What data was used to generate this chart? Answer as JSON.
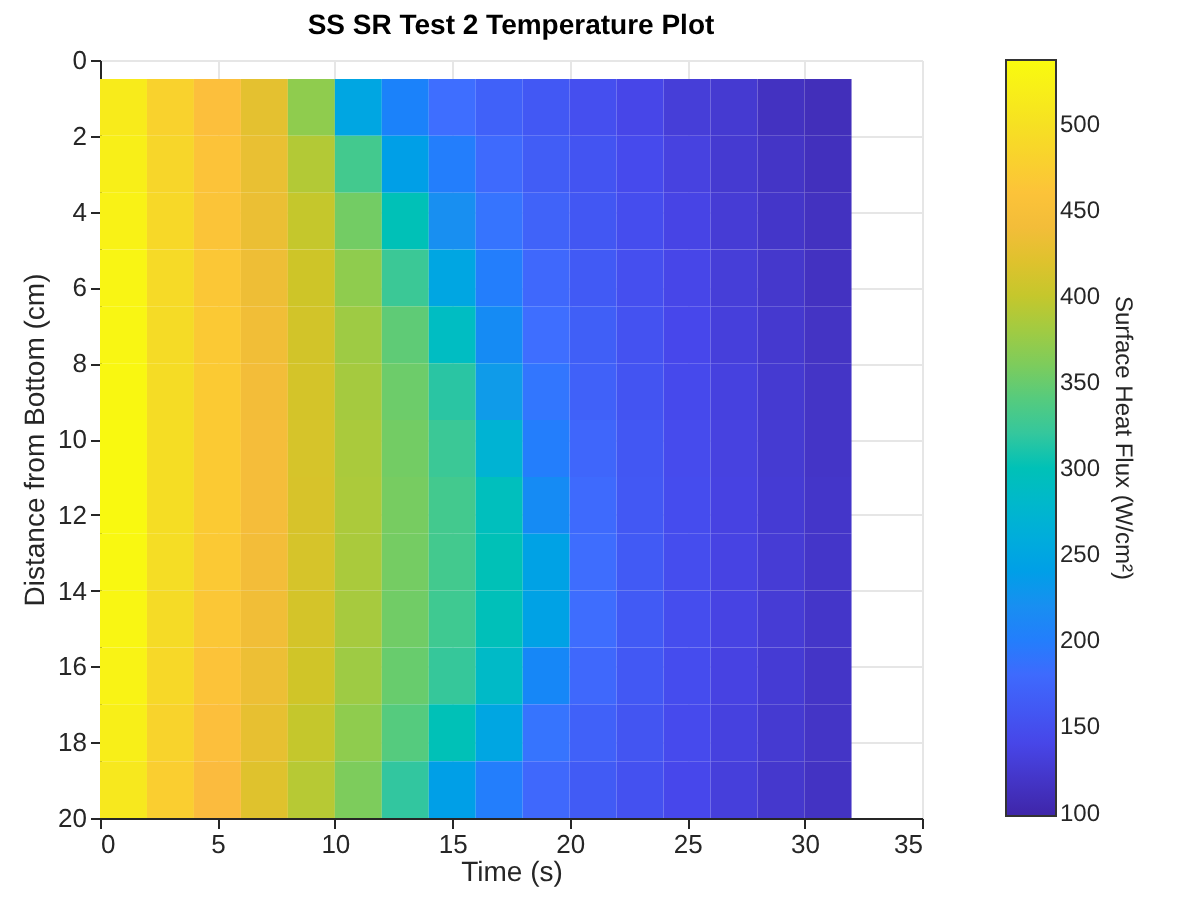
{
  "chart_data": {
    "type": "heatmap",
    "title": "SS SR Test 2 Temperature Plot",
    "xlabel": "Time (s)",
    "ylabel": "Distance from Bottom (cm)",
    "clabel": "Surface Heat Flux (W/cm²)",
    "x": [
      1,
      3,
      5,
      7,
      9,
      11,
      13,
      15,
      17,
      19,
      21,
      23,
      25,
      27,
      29,
      31
    ],
    "y": [
      1.25,
      2.75,
      4.25,
      5.75,
      7.25,
      8.75,
      10.25,
      11.75,
      13.25,
      14.75,
      16.25,
      17.75,
      19.25
    ],
    "cells": [
      [
        515,
        480,
        455,
        425,
        370,
        250,
        205,
        185,
        170,
        160,
        150,
        140,
        130,
        125,
        115,
        110
      ],
      [
        520,
        485,
        460,
        430,
        390,
        330,
        240,
        200,
        180,
        165,
        155,
        145,
        135,
        125,
        118,
        112
      ],
      [
        525,
        488,
        462,
        432,
        400,
        355,
        300,
        220,
        190,
        172,
        158,
        148,
        138,
        128,
        120,
        114
      ],
      [
        528,
        490,
        465,
        435,
        405,
        370,
        325,
        250,
        200,
        178,
        162,
        150,
        140,
        130,
        122,
        115
      ],
      [
        530,
        492,
        468,
        438,
        408,
        378,
        345,
        290,
        215,
        185,
        167,
        153,
        142,
        132,
        124,
        117
      ],
      [
        532,
        493,
        470,
        440,
        410,
        382,
        352,
        315,
        235,
        192,
        170,
        155,
        144,
        134,
        125,
        118
      ],
      [
        534,
        495,
        470,
        442,
        412,
        385,
        355,
        325,
        270,
        200,
        175,
        158,
        146,
        135,
        126,
        119
      ],
      [
        534,
        495,
        470,
        442,
        413,
        386,
        357,
        330,
        295,
        215,
        180,
        160,
        147,
        136,
        127,
        120
      ],
      [
        533,
        494,
        468,
        440,
        412,
        385,
        356,
        330,
        300,
        245,
        183,
        162,
        148,
        137,
        128,
        120
      ],
      [
        530,
        492,
        465,
        438,
        410,
        383,
        354,
        328,
        298,
        245,
        183,
        162,
        148,
        137,
        128,
        120
      ],
      [
        526,
        488,
        460,
        434,
        406,
        378,
        350,
        322,
        285,
        210,
        178,
        160,
        147,
        136,
        127,
        119
      ],
      [
        520,
        482,
        455,
        428,
        400,
        370,
        340,
        300,
        250,
        190,
        170,
        156,
        145,
        134,
        125,
        118
      ],
      [
        510,
        475,
        448,
        420,
        392,
        360,
        318,
        240,
        200,
        178,
        163,
        152,
        142,
        132,
        123,
        116
      ]
    ],
    "xlim": [
      0,
      35
    ],
    "xticks": [
      0,
      5,
      10,
      15,
      20,
      25,
      30,
      35
    ],
    "ylim": [
      20,
      0
    ],
    "yticks": [
      0,
      2,
      4,
      6,
      8,
      10,
      12,
      14,
      16,
      18,
      20
    ],
    "clim": [
      98,
      537
    ],
    "cticks": [
      100,
      150,
      200,
      250,
      300,
      350,
      400,
      450,
      500
    ],
    "grid": true
  }
}
